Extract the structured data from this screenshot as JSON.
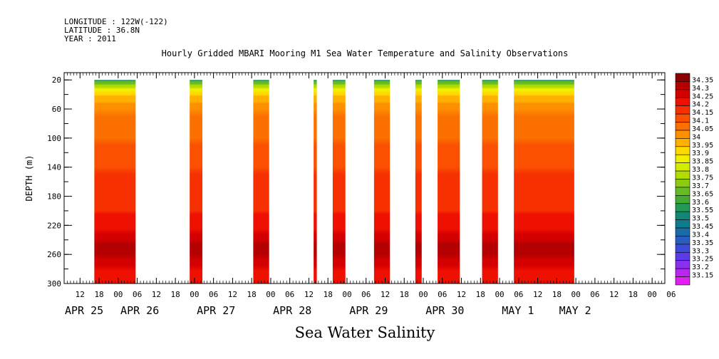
{
  "header": {
    "longitude": "LONGITUDE : 122W(-122)",
    "latitude": "LATITUDE : 36.8N",
    "year": "YEAR : 2011"
  },
  "chart_data": {
    "type": "heatmap",
    "title": "Hourly Gridded MBARI Mooring M1 Sea Water Temperature and Salinity Observations",
    "xlabel": "Sea Water Salinity",
    "ylabel": "DEPTH (m)",
    "x_unit": "hours since 2011-04-25 00:00",
    "xlim": [
      7,
      196
    ],
    "ylim": [
      300,
      10
    ],
    "y_ticks": [
      20,
      60,
      100,
      140,
      180,
      220,
      260,
      300
    ],
    "x_hour_ticks": [
      {
        "h": 12,
        "label": "12"
      },
      {
        "h": 18,
        "label": "18"
      },
      {
        "h": 24,
        "label": "00"
      },
      {
        "h": 30,
        "label": "06"
      },
      {
        "h": 36,
        "label": "12"
      },
      {
        "h": 42,
        "label": "18"
      },
      {
        "h": 48,
        "label": "00"
      },
      {
        "h": 54,
        "label": "06"
      },
      {
        "h": 60,
        "label": "12"
      },
      {
        "h": 66,
        "label": "18"
      },
      {
        "h": 72,
        "label": "00"
      },
      {
        "h": 78,
        "label": "06"
      },
      {
        "h": 84,
        "label": "12"
      },
      {
        "h": 90,
        "label": "18"
      },
      {
        "h": 96,
        "label": "00"
      },
      {
        "h": 102,
        "label": "06"
      },
      {
        "h": 108,
        "label": "12"
      },
      {
        "h": 114,
        "label": "18"
      },
      {
        "h": 120,
        "label": "00"
      },
      {
        "h": 126,
        "label": "06"
      },
      {
        "h": 132,
        "label": "12"
      },
      {
        "h": 138,
        "label": "18"
      },
      {
        "h": 144,
        "label": "00"
      },
      {
        "h": 150,
        "label": "06"
      },
      {
        "h": 156,
        "label": "12"
      },
      {
        "h": 162,
        "label": "18"
      },
      {
        "h": 168,
        "label": "00"
      },
      {
        "h": 174,
        "label": "06"
      },
      {
        "h": 180,
        "label": "12"
      },
      {
        "h": 186,
        "label": "18"
      },
      {
        "h": 192,
        "label": "00"
      },
      {
        "h": 198,
        "label": "06"
      }
    ],
    "x_date_labels": [
      {
        "h": 7,
        "label": "APR 25"
      },
      {
        "h": 31,
        "label": "APR 26"
      },
      {
        "h": 55,
        "label": "APR 27"
      },
      {
        "h": 79,
        "label": "APR 28"
      },
      {
        "h": 103,
        "label": "APR 29"
      },
      {
        "h": 127,
        "label": "APR 30"
      },
      {
        "h": 151,
        "label": "MAY  1"
      },
      {
        "h": 169,
        "label": "MAY  2"
      }
    ],
    "data_segments": [
      {
        "start": 16.5,
        "end": 29.5
      },
      {
        "start": 46.5,
        "end": 50.5
      },
      {
        "start": 66.5,
        "end": 71.5
      },
      {
        "start": 85.5,
        "end": 86.5
      },
      {
        "start": 91.5,
        "end": 95.5
      },
      {
        "start": 104.5,
        "end": 109.5
      },
      {
        "start": 117.5,
        "end": 119.5
      },
      {
        "start": 124.5,
        "end": 131.5
      },
      {
        "start": 138.5,
        "end": 143.5
      },
      {
        "start": 148.5,
        "end": 167.5
      }
    ],
    "profile": [
      {
        "depth": 20,
        "value": 33.5
      },
      {
        "depth": 25,
        "value": 33.65
      },
      {
        "depth": 30,
        "value": 33.75
      },
      {
        "depth": 35,
        "value": 33.85
      },
      {
        "depth": 40,
        "value": 33.9
      },
      {
        "depth": 45,
        "value": 33.95
      },
      {
        "depth": 50,
        "value": 33.97
      },
      {
        "depth": 55,
        "value": 34.0
      },
      {
        "depth": 60,
        "value": 34.02
      },
      {
        "depth": 80,
        "value": 34.05
      },
      {
        "depth": 100,
        "value": 34.07
      },
      {
        "depth": 120,
        "value": 34.1
      },
      {
        "depth": 140,
        "value": 34.13
      },
      {
        "depth": 160,
        "value": 34.15
      },
      {
        "depth": 180,
        "value": 34.16
      },
      {
        "depth": 200,
        "value": 34.18
      },
      {
        "depth": 210,
        "value": 34.21
      },
      {
        "depth": 225,
        "value": 34.24
      },
      {
        "depth": 240,
        "value": 34.27
      },
      {
        "depth": 250,
        "value": 34.3
      },
      {
        "depth": 260,
        "value": 34.31
      },
      {
        "depth": 275,
        "value": 34.27
      },
      {
        "depth": 290,
        "value": 34.24
      },
      {
        "depth": 300,
        "value": 34.22
      }
    ],
    "colorbar": {
      "labels": [
        "34.35",
        "34.3",
        "34.25",
        "34.2",
        "34.15",
        "34.1",
        "34.05",
        "34",
        "33.95",
        "33.9",
        "33.85",
        "33.8",
        "33.75",
        "33.7",
        "33.65",
        "33.6",
        "33.55",
        "33.5",
        "33.45",
        "33.4",
        "33.35",
        "33.3",
        "33.25",
        "33.2",
        "33.15"
      ],
      "colors": [
        "#8b0000",
        "#b40000",
        "#d40000",
        "#ee1000",
        "#f73000",
        "#fa5000",
        "#fc7000",
        "#fe9000",
        "#ffb000",
        "#ffd800",
        "#f2ee00",
        "#d4ec00",
        "#b0dc00",
        "#8ccc10",
        "#66bb22",
        "#44aa33",
        "#229955",
        "#118877",
        "#0f7b8f",
        "#1a6ca6",
        "#2a5dc0",
        "#3c4cd8",
        "#5a3ceb",
        "#8a30f0",
        "#b826f0",
        "#e01ff0"
      ]
    }
  }
}
